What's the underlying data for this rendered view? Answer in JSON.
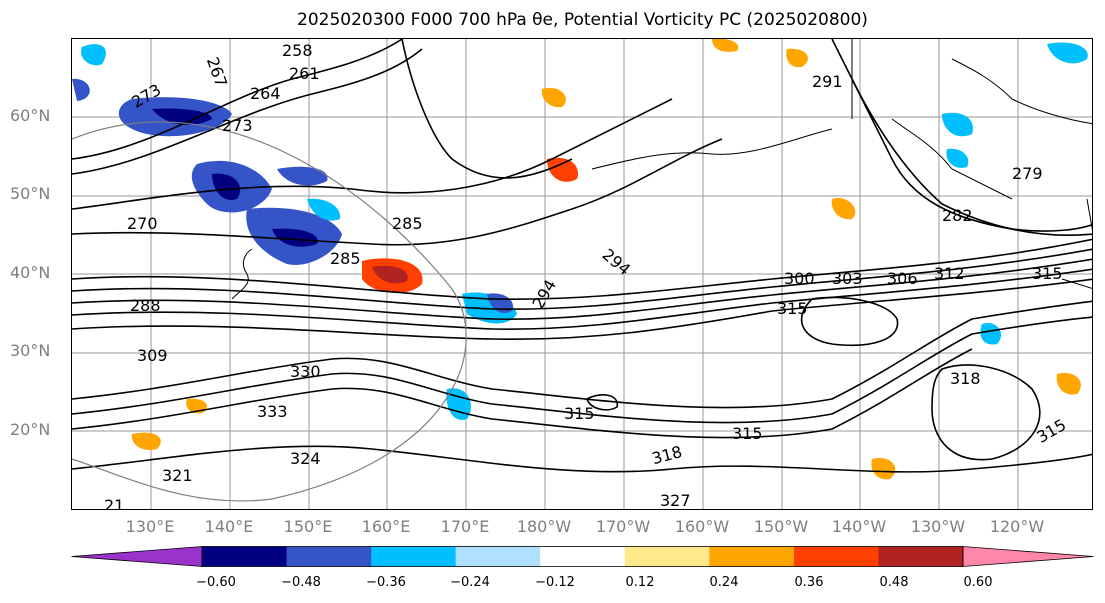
{
  "title": "2025020300 F000 700 hPa θe, Potential Vorticity PC (2025020800)",
  "latitude_labels": [
    "60°N",
    "50°N",
    "40°N",
    "30°N",
    "20°N"
  ],
  "longitude_labels": [
    "130°E",
    "140°E",
    "150°E",
    "160°E",
    "170°E",
    "180°W",
    "170°W",
    "160°W",
    "150°W",
    "140°W",
    "130°W",
    "120°W"
  ],
  "colorbar": {
    "colors": [
      "#9a33cc",
      "#000080",
      "#3454c8",
      "#00bfff",
      "#b0e0ff",
      "#ffffff",
      "#ffe98a",
      "#ffa500",
      "#ff4000",
      "#b22222",
      "#ff88aa"
    ],
    "tick_labels": [
      "−0.60",
      "−0.48",
      "−0.36",
      "−0.24",
      "−0.12",
      "0.12",
      "0.24",
      "0.36",
      "0.48",
      "0.60"
    ]
  },
  "contour_labels": [
    "258",
    "261",
    "264",
    "267",
    "270",
    "273",
    "273",
    "279",
    "282",
    "285",
    "285",
    "288",
    "291",
    "294",
    "294",
    "300",
    "303",
    "306",
    "309",
    "312",
    "315",
    "315",
    "315",
    "315",
    "315",
    "318",
    "318",
    "321",
    "324",
    "327",
    "330",
    "333",
    "21"
  ]
}
